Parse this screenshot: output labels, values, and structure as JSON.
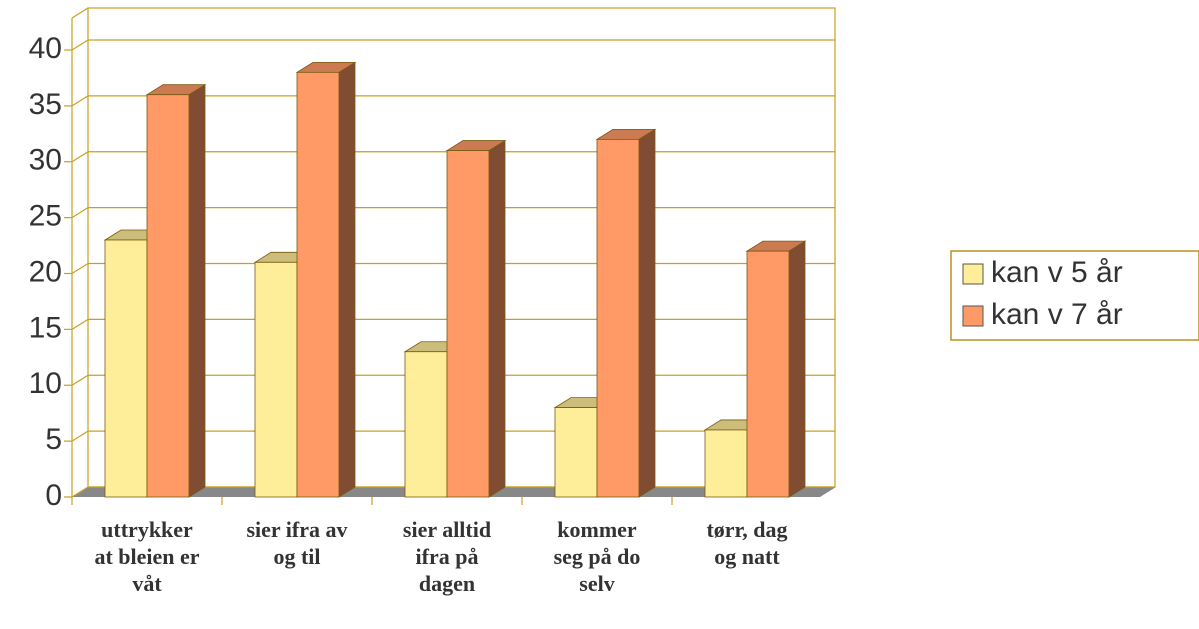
{
  "chart_data": {
    "type": "bar3d",
    "categories": [
      "uttrykker\nat bleien er\nvåt",
      "sier ifra av\nog til",
      "sier alltid\nifra på\ndagen",
      "kommer\nseg på do\nselv",
      "tørr, dag\nog natt"
    ],
    "series": [
      {
        "name": "kan v 5 år",
        "color": "#FFEE99",
        "values": [
          23,
          21,
          13,
          8,
          6
        ]
      },
      {
        "name": "kan v 7 år",
        "color": "#FF9966",
        "values": [
          36,
          38,
          31,
          32,
          22
        ]
      }
    ],
    "ylim": [
      0,
      40
    ],
    "yticks": [
      0,
      5,
      10,
      15,
      20,
      25,
      30,
      35,
      40
    ],
    "grid": true,
    "legend": "right"
  }
}
